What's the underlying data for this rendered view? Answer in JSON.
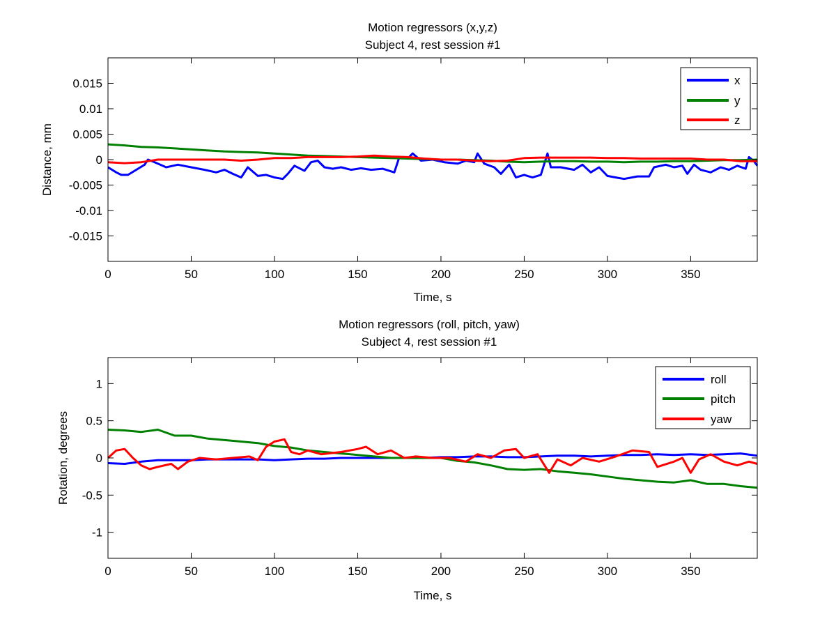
{
  "chart_data": [
    {
      "type": "line",
      "title": "Motion regressors (x,y,z)",
      "subtitle": "Subject 4, rest session #1",
      "xlabel": "Time, s",
      "ylabel": "Distance, mm",
      "xlim": [
        0,
        390
      ],
      "ylim": [
        -0.02,
        0.02
      ],
      "xticks": [
        0,
        50,
        100,
        150,
        200,
        250,
        300,
        350
      ],
      "xtick_labels": [
        "0",
        "50",
        "100",
        "150",
        "200",
        "250",
        "300",
        "350"
      ],
      "yticks": [
        -0.015,
        -0.01,
        -0.005,
        0,
        0.005,
        0.01,
        0.015
      ],
      "ytick_labels": [
        "-0.015",
        "-0.01",
        "-0.005",
        "0",
        "0.005",
        "0.01",
        "0.015"
      ],
      "grid": false,
      "legend_position": "top-right",
      "series": [
        {
          "name": "x",
          "color": "#0000ff",
          "x": [
            0,
            5,
            8,
            12,
            17,
            22,
            24,
            28,
            35,
            42,
            50,
            58,
            65,
            70,
            75,
            80,
            84,
            90,
            95,
            100,
            105,
            108,
            112,
            118,
            122,
            126,
            130,
            135,
            140,
            146,
            152,
            158,
            165,
            172,
            175,
            180,
            183,
            188,
            195,
            202,
            210,
            215,
            220,
            222,
            226,
            232,
            236,
            241,
            245,
            250,
            255,
            260,
            264,
            266,
            272,
            280,
            285,
            290,
            295,
            300,
            305,
            310,
            318,
            325,
            328,
            335,
            340,
            345,
            348,
            352,
            356,
            362,
            368,
            373,
            378,
            383,
            385,
            388,
            390
          ],
          "values": [
            -0.0015,
            -0.0025,
            -0.003,
            -0.003,
            -0.002,
            -0.001,
            0.0,
            -0.0005,
            -0.0015,
            -0.001,
            -0.0015,
            -0.002,
            -0.0025,
            -0.002,
            -0.0028,
            -0.0035,
            -0.0015,
            -0.0032,
            -0.003,
            -0.0035,
            -0.0038,
            -0.0028,
            -0.0012,
            -0.0022,
            -0.0005,
            -0.0002,
            -0.0015,
            -0.0018,
            -0.0015,
            -0.002,
            -0.0017,
            -0.002,
            -0.0018,
            -0.0025,
            0.0005,
            0.0002,
            0.0012,
            -0.0002,
            0.0,
            -0.0005,
            -0.0008,
            -0.0002,
            -0.0005,
            0.0012,
            -0.0008,
            -0.0015,
            -0.0028,
            -0.001,
            -0.0035,
            -0.003,
            -0.0035,
            -0.003,
            0.0012,
            -0.0015,
            -0.0015,
            -0.002,
            -0.001,
            -0.0025,
            -0.0015,
            -0.0032,
            -0.0035,
            -0.0038,
            -0.0033,
            -0.0033,
            -0.0015,
            -0.001,
            -0.0015,
            -0.0012,
            -0.0028,
            -0.001,
            -0.002,
            -0.0025,
            -0.0015,
            -0.002,
            -0.0012,
            -0.0018,
            0.0005,
            -0.0003,
            -0.0012
          ]
        },
        {
          "name": "y",
          "color": "#008000",
          "x": [
            0,
            10,
            20,
            30,
            40,
            50,
            60,
            70,
            80,
            90,
            100,
            110,
            120,
            130,
            140,
            150,
            160,
            170,
            180,
            190,
            200,
            210,
            220,
            230,
            240,
            250,
            260,
            270,
            280,
            290,
            300,
            310,
            320,
            330,
            340,
            350,
            360,
            370,
            380,
            390
          ],
          "values": [
            0.003,
            0.0028,
            0.0025,
            0.0024,
            0.0022,
            0.002,
            0.0018,
            0.0016,
            0.0015,
            0.0014,
            0.0012,
            0.001,
            0.0008,
            0.0007,
            0.0006,
            0.0005,
            0.0004,
            0.0003,
            0.0002,
            0.0001,
            0.0,
            0.0,
            -0.0001,
            -0.0002,
            -0.0004,
            -0.0005,
            -0.0004,
            -0.0003,
            -0.0003,
            -0.0004,
            -0.0004,
            -0.0005,
            -0.0004,
            -0.0004,
            -0.0003,
            -0.0003,
            -0.0002,
            -0.0001,
            -0.0001,
            0.0
          ]
        },
        {
          "name": "z",
          "color": "#ff0000",
          "x": [
            0,
            10,
            20,
            30,
            40,
            50,
            60,
            70,
            80,
            90,
            100,
            110,
            120,
            130,
            140,
            150,
            160,
            170,
            180,
            190,
            200,
            210,
            220,
            230,
            240,
            250,
            260,
            270,
            280,
            290,
            300,
            310,
            320,
            330,
            340,
            350,
            360,
            370,
            380,
            390
          ],
          "values": [
            -0.0005,
            -0.0007,
            -0.0005,
            0.0,
            0.0,
            0.0,
            0.0,
            0.0,
            -0.0002,
            0.0,
            0.0003,
            0.0003,
            0.0005,
            0.0005,
            0.0005,
            0.0006,
            0.0008,
            0.0006,
            0.0005,
            0.0002,
            0.0,
            0.0,
            -0.0002,
            -0.0003,
            -0.0002,
            0.0003,
            0.0004,
            0.0004,
            0.0004,
            0.0004,
            0.0003,
            0.0003,
            0.0002,
            0.0002,
            0.0002,
            0.0002,
            0.0,
            0.0,
            -0.0003,
            -0.0003
          ]
        }
      ]
    },
    {
      "type": "line",
      "title": "Motion regressors (roll, pitch, yaw)",
      "subtitle": "Subject 4, rest session #1",
      "xlabel": "Time, s",
      "ylabel": "Rotation, degrees",
      "xlim": [
        0,
        390
      ],
      "ylim": [
        -1.35,
        1.35
      ],
      "xticks": [
        0,
        50,
        100,
        150,
        200,
        250,
        300,
        350
      ],
      "xtick_labels": [
        "0",
        "50",
        "100",
        "150",
        "200",
        "250",
        "300",
        "350"
      ],
      "yticks": [
        -1,
        -0.5,
        0,
        0.5,
        1
      ],
      "ytick_labels": [
        "-1",
        "-0.5",
        "0",
        "0.5",
        "1"
      ],
      "grid": false,
      "legend_position": "top-right",
      "series": [
        {
          "name": "roll",
          "color": "#0000ff",
          "x": [
            0,
            10,
            20,
            30,
            40,
            50,
            60,
            70,
            80,
            90,
            100,
            110,
            120,
            130,
            140,
            150,
            160,
            170,
            180,
            190,
            200,
            210,
            220,
            230,
            240,
            250,
            260,
            270,
            280,
            290,
            300,
            310,
            320,
            330,
            340,
            350,
            360,
            370,
            380,
            390
          ],
          "values": [
            -0.07,
            -0.08,
            -0.05,
            -0.03,
            -0.03,
            -0.03,
            -0.02,
            -0.02,
            -0.02,
            -0.02,
            -0.03,
            -0.02,
            -0.01,
            -0.01,
            0.0,
            0.0,
            0.0,
            0.0,
            0.0,
            0.0,
            0.01,
            0.01,
            0.02,
            0.02,
            0.01,
            0.01,
            0.02,
            0.03,
            0.03,
            0.02,
            0.03,
            0.04,
            0.04,
            0.05,
            0.04,
            0.05,
            0.04,
            0.05,
            0.06,
            0.03
          ]
        },
        {
          "name": "pitch",
          "color": "#008000",
          "x": [
            0,
            10,
            20,
            30,
            40,
            50,
            60,
            70,
            80,
            90,
            100,
            110,
            120,
            130,
            140,
            150,
            160,
            170,
            180,
            190,
            200,
            210,
            220,
            230,
            240,
            250,
            260,
            270,
            280,
            290,
            300,
            310,
            320,
            330,
            340,
            350,
            360,
            370,
            380,
            390
          ],
          "values": [
            0.38,
            0.37,
            0.35,
            0.38,
            0.3,
            0.3,
            0.26,
            0.24,
            0.22,
            0.2,
            0.16,
            0.14,
            0.1,
            0.08,
            0.06,
            0.04,
            0.02,
            0.0,
            0.0,
            0.0,
            0.0,
            -0.04,
            -0.06,
            -0.1,
            -0.15,
            -0.16,
            -0.15,
            -0.18,
            -0.2,
            -0.22,
            -0.25,
            -0.28,
            -0.3,
            -0.32,
            -0.33,
            -0.3,
            -0.35,
            -0.35,
            -0.38,
            -0.4
          ]
        },
        {
          "name": "yaw",
          "color": "#ff0000",
          "x": [
            0,
            5,
            10,
            15,
            20,
            25,
            30,
            38,
            42,
            48,
            55,
            65,
            75,
            85,
            90,
            95,
            100,
            106,
            110,
            115,
            120,
            128,
            140,
            150,
            155,
            162,
            170,
            178,
            185,
            195,
            205,
            215,
            222,
            230,
            238,
            245,
            250,
            258,
            265,
            270,
            278,
            285,
            295,
            305,
            315,
            325,
            330,
            340,
            345,
            350,
            355,
            362,
            370,
            378,
            385,
            390
          ],
          "values": [
            0.0,
            0.1,
            0.12,
            0.0,
            -0.1,
            -0.15,
            -0.12,
            -0.08,
            -0.15,
            -0.05,
            0.0,
            -0.02,
            0.0,
            0.02,
            -0.03,
            0.15,
            0.22,
            0.25,
            0.08,
            0.05,
            0.1,
            0.05,
            0.08,
            0.12,
            0.15,
            0.05,
            0.1,
            0.0,
            0.02,
            0.0,
            0.0,
            -0.05,
            0.05,
            0.0,
            0.1,
            0.12,
            0.0,
            0.05,
            -0.2,
            -0.02,
            -0.1,
            0.0,
            -0.05,
            0.02,
            0.1,
            0.08,
            -0.12,
            -0.05,
            0.0,
            -0.2,
            -0.02,
            0.05,
            -0.05,
            -0.1,
            -0.05,
            -0.08
          ]
        }
      ]
    }
  ]
}
